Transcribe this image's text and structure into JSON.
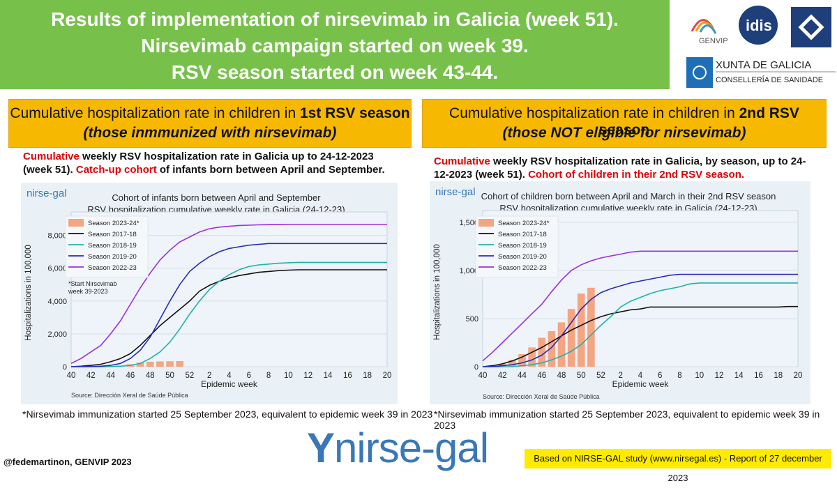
{
  "banner": {
    "line1": "Results of implementation of nirsevimab in Galicia (week 51).",
    "line2": "Nirsevimab campaign started on week 39.",
    "line3": "RSV season started on week 43-44."
  },
  "logos": {
    "genvip": "GENVIP",
    "idis": "idis",
    "xunta_title": "XUNTA DE GALICIA",
    "xunta_sub": "CONSELLERÍA DE SANIDADE"
  },
  "left_panel": {
    "head_prefix": "Cumulative hospitalization rate in children in ",
    "head_bold": "1st RSV season",
    "head_sub": "(those inmmunized with nirsevimab)",
    "desc_red1": "Cumulative",
    "desc_mid1": " weekly RSV hospitalization rate in Galicia up to 24-12-2023",
    "desc_line2a": "(week 51). ",
    "desc_red2": "Catch-up cohort",
    "desc_line2b": " of infants born between April and September.",
    "footnote": "*Nirsevimab immunization started 25 September 2023, equivalent to epidemic week 39 in 2023"
  },
  "right_panel": {
    "head_prefix": "Cumulative hospitalization rate in children in ",
    "head_bold": "2nd RSV season",
    "head_sub": "(those NOT eligible for nirsevimab)",
    "desc_red1": "Cumulative",
    "desc_mid1": " weekly RSV hospitalization rate in Galicia, by season, up to 24-",
    "desc_line2a": "12-2023 (week 51).  ",
    "desc_red2": "Cohort of children in their 2nd RSV season.",
    "footnote": "*Nirsevimab immunization started 25 September 2023, equivalent to epidemic week 39 in 2023"
  },
  "brand_small": "nirse-gal",
  "brand_big": "nirse-gal",
  "bottom_left": "@fedemartinon, GENVIP 2023",
  "bottom_right": "Based on NIRSE-GAL study (www.nirsegal.es) - Report of 27 december 2023",
  "colors": {
    "banner": "#77c14b",
    "panel_head": "#f6b800",
    "bars": "#f4a582",
    "s1718": "#111111",
    "s1819": "#20b2aa",
    "s1920": "#2a2ab8",
    "s2223": "#9b30e0"
  },
  "chart_data": [
    {
      "type": "line",
      "title": "Cohort of infants born between April and September",
      "subtitle": "RSV hospitalization cumulative weekly rate in Galicia (24-12-23)",
      "xlabel": "Epidemic week",
      "ylabel": "Hospitalizations in 100,000",
      "source": "Source: Dirección Xeral de Saúde Pública",
      "annotation": "*Start Nirscvimab\nweek 39-2023",
      "x_ticks": [
        "40",
        "42",
        "44",
        "46",
        "48",
        "50",
        "52",
        "2",
        "4",
        "6",
        "8",
        "10",
        "12",
        "14",
        "16",
        "18",
        "20"
      ],
      "y_ticks": [
        "0",
        "2,000",
        "4,000",
        "6,000",
        "8,000"
      ],
      "ylim": [
        0,
        9000
      ],
      "legend": [
        "Season 2023-24*",
        "Season 2017-18",
        "Season 2018-19",
        "Season 2019-20",
        "Season 2022-23"
      ],
      "bars": {
        "name": "Season 2023-24*",
        "x": [
          46,
          47,
          48,
          49,
          50,
          51
        ],
        "values": [
          150,
          250,
          300,
          320,
          330,
          340
        ]
      },
      "series": [
        {
          "name": "Season 2017-18",
          "values": [
            0,
            30,
            80,
            150,
            300,
            500,
            800,
            1300,
            1900,
            2500,
            3000,
            3500,
            4000,
            4600,
            4950,
            5200,
            5400,
            5550,
            5650,
            5750,
            5800,
            5850,
            5880,
            5900,
            5900,
            5900,
            5900,
            5900,
            5900,
            5900,
            5900,
            5900,
            5900
          ]
        },
        {
          "name": "Season 2018-19",
          "values": [
            0,
            0,
            0,
            0,
            10,
            30,
            80,
            200,
            500,
            900,
            1500,
            2300,
            3200,
            4000,
            4700,
            5200,
            5600,
            5900,
            6100,
            6200,
            6250,
            6300,
            6330,
            6350,
            6350,
            6350,
            6350,
            6350,
            6350,
            6350,
            6350,
            6350,
            6350
          ]
        },
        {
          "name": "Season 2019-20",
          "values": [
            0,
            0,
            10,
            30,
            80,
            200,
            500,
            1000,
            1800,
            2900,
            4000,
            5000,
            5800,
            6300,
            6700,
            7000,
            7200,
            7300,
            7400,
            7450,
            7500,
            7500,
            7500,
            7500,
            7500,
            7500,
            7500,
            7500,
            7500,
            7500,
            7500,
            7500,
            7500
          ]
        },
        {
          "name": "Season 2022-23",
          "values": [
            200,
            500,
            900,
            1300,
            2000,
            2800,
            3800,
            4800,
            5700,
            6500,
            7100,
            7600,
            7900,
            8200,
            8400,
            8500,
            8550,
            8600,
            8620,
            8640,
            8650,
            8650,
            8660,
            8660,
            8660,
            8660,
            8660,
            8660,
            8660,
            8660,
            8660,
            8660,
            8660
          ]
        }
      ]
    },
    {
      "type": "line",
      "title": "Cohort of children born between April and March in their 2nd RSV season",
      "subtitle": "RSV hospitalization cumulative weekly rate in Galicia (24-12-23)",
      "xlabel": "Epidemic week",
      "ylabel": "Hospitalizations in 100,000",
      "source": "Source: Dirección Xeral de Saúde Pública",
      "x_ticks": [
        "40",
        "42",
        "44",
        "46",
        "48",
        "50",
        "52",
        "2",
        "4",
        "6",
        "8",
        "10",
        "12",
        "14",
        "16",
        "18",
        "20"
      ],
      "y_ticks": [
        "0",
        "500",
        "1,000",
        "1,500"
      ],
      "ylim": [
        0,
        1550
      ],
      "legend": [
        "Season 2023-24*",
        "Season 2017-18",
        "Season 2018-19",
        "Season 2019-20",
        "Season 2022-23"
      ],
      "bars": {
        "name": "Season 2023-24*",
        "x": [
          42,
          43,
          44,
          45,
          46,
          47,
          48,
          49,
          50,
          51
        ],
        "values": [
          30,
          70,
          130,
          200,
          300,
          370,
          460,
          600,
          760,
          820
        ]
      },
      "series": [
        {
          "name": "Season 2017-18",
          "values": [
            0,
            10,
            30,
            60,
            100,
            150,
            200,
            260,
            320,
            380,
            430,
            480,
            520,
            550,
            570,
            590,
            600,
            620,
            620,
            620,
            620,
            620,
            620,
            620,
            620,
            620,
            620,
            620,
            620,
            620,
            620,
            625,
            625
          ]
        },
        {
          "name": "Season 2018-19",
          "values": [
            0,
            0,
            0,
            0,
            10,
            20,
            40,
            70,
            110,
            160,
            230,
            330,
            430,
            520,
            620,
            680,
            720,
            760,
            790,
            810,
            830,
            860,
            870,
            870,
            870,
            870,
            870,
            870,
            870,
            870,
            870,
            870,
            870
          ]
        },
        {
          "name": "Season 2019-20",
          "values": [
            0,
            0,
            10,
            20,
            40,
            70,
            120,
            200,
            320,
            460,
            600,
            700,
            770,
            810,
            840,
            870,
            890,
            910,
            930,
            950,
            960,
            960,
            960,
            960,
            960,
            960,
            960,
            960,
            960,
            960,
            960,
            960,
            960
          ]
        },
        {
          "name": "Season 2022-23",
          "values": [
            60,
            150,
            250,
            350,
            450,
            550,
            650,
            780,
            900,
            1000,
            1060,
            1100,
            1130,
            1150,
            1170,
            1190,
            1200,
            1200,
            1200,
            1200,
            1200,
            1200,
            1200,
            1200,
            1200,
            1200,
            1200,
            1200,
            1200,
            1200,
            1200,
            1200,
            1200
          ]
        }
      ]
    }
  ]
}
